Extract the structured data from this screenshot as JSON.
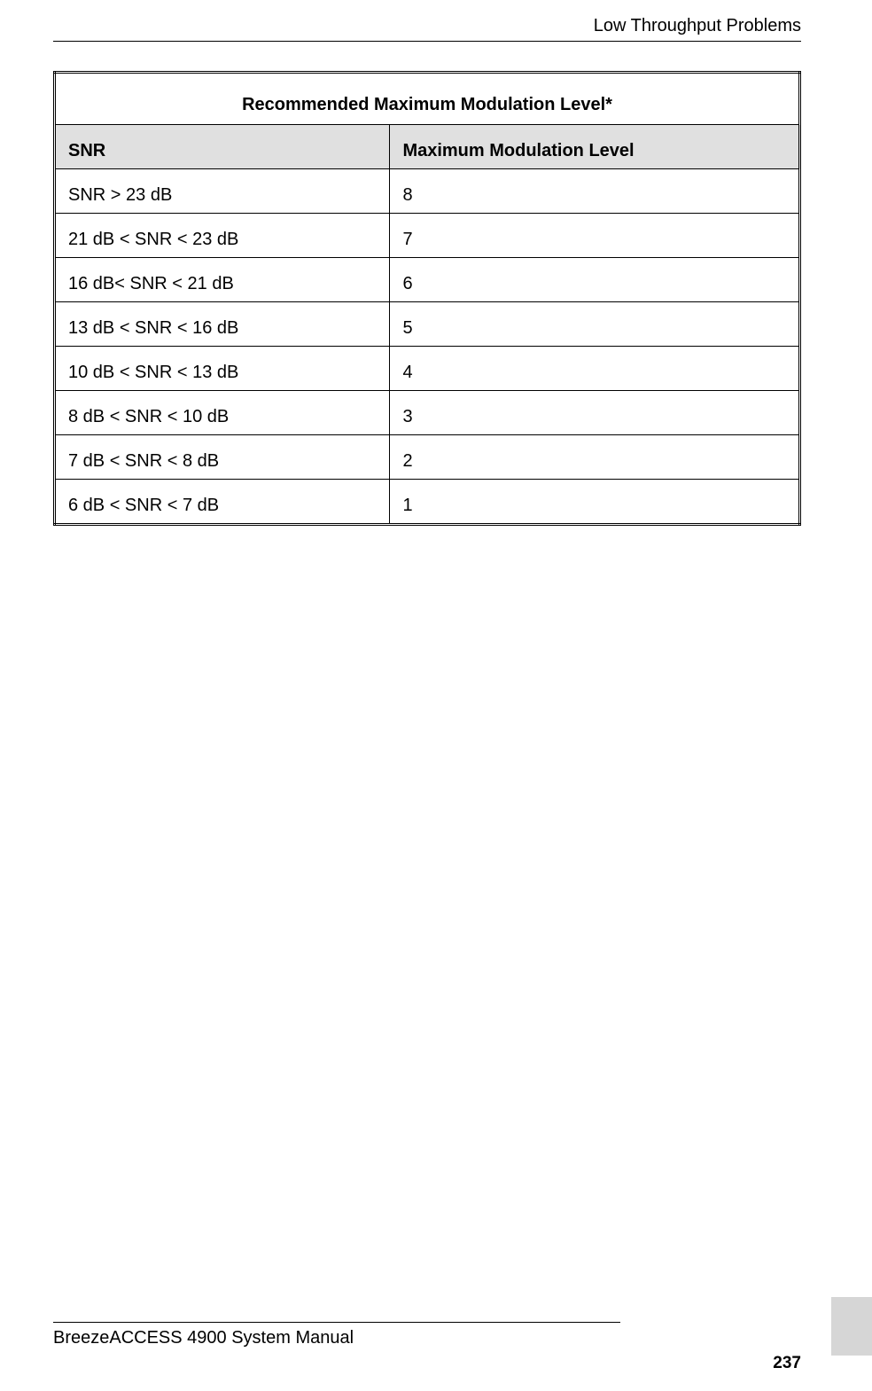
{
  "header": {
    "section_title": "Low Throughput Problems"
  },
  "table": {
    "type": "table",
    "title": "Recommended Maximum Modulation Level*",
    "title_fontsize": 20,
    "title_fontweight": "bold",
    "header_background_color": "#e0e0e0",
    "border_color": "#000000",
    "outer_border": "3px double",
    "cell_fontsize": 20,
    "columns": [
      {
        "label": "SNR",
        "width_pct": 45
      },
      {
        "label": "Maximum Modulation Level",
        "width_pct": 55
      }
    ],
    "rows": [
      {
        "snr": "SNR > 23 dB",
        "mml": "8"
      },
      {
        "snr": "21 dB < SNR < 23 dB",
        "mml": "7"
      },
      {
        "snr": "16 dB< SNR < 21 dB",
        "mml": "6"
      },
      {
        "snr": "13 dB < SNR < 16 dB",
        "mml": "5"
      },
      {
        "snr": "10 dB < SNR < 13 dB",
        "mml": "4"
      },
      {
        "snr": "8 dB < SNR < 10 dB",
        "mml": "3"
      },
      {
        "snr": "7 dB < SNR < 8 dB",
        "mml": "2"
      },
      {
        "snr": "6 dB < SNR < 7 dB",
        "mml": "1"
      }
    ]
  },
  "footer": {
    "manual_title": "BreezeACCESS 4900 System Manual",
    "page_number": "237"
  },
  "colors": {
    "background": "#ffffff",
    "text": "#000000",
    "header_bg": "#e0e0e0",
    "side_bar": "#d6d6d6"
  }
}
